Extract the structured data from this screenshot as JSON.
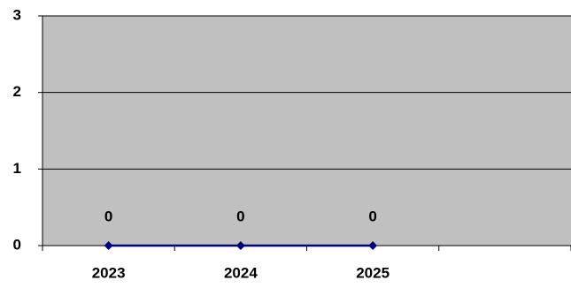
{
  "chart_data": {
    "type": "line",
    "categories": [
      "2023",
      "2024",
      "2025",
      null
    ],
    "values": [
      0,
      0,
      0,
      null
    ],
    "color": "#000080",
    "ylim": [
      0,
      3
    ],
    "yticks": [
      0,
      1,
      2,
      3
    ],
    "grid": true
  }
}
